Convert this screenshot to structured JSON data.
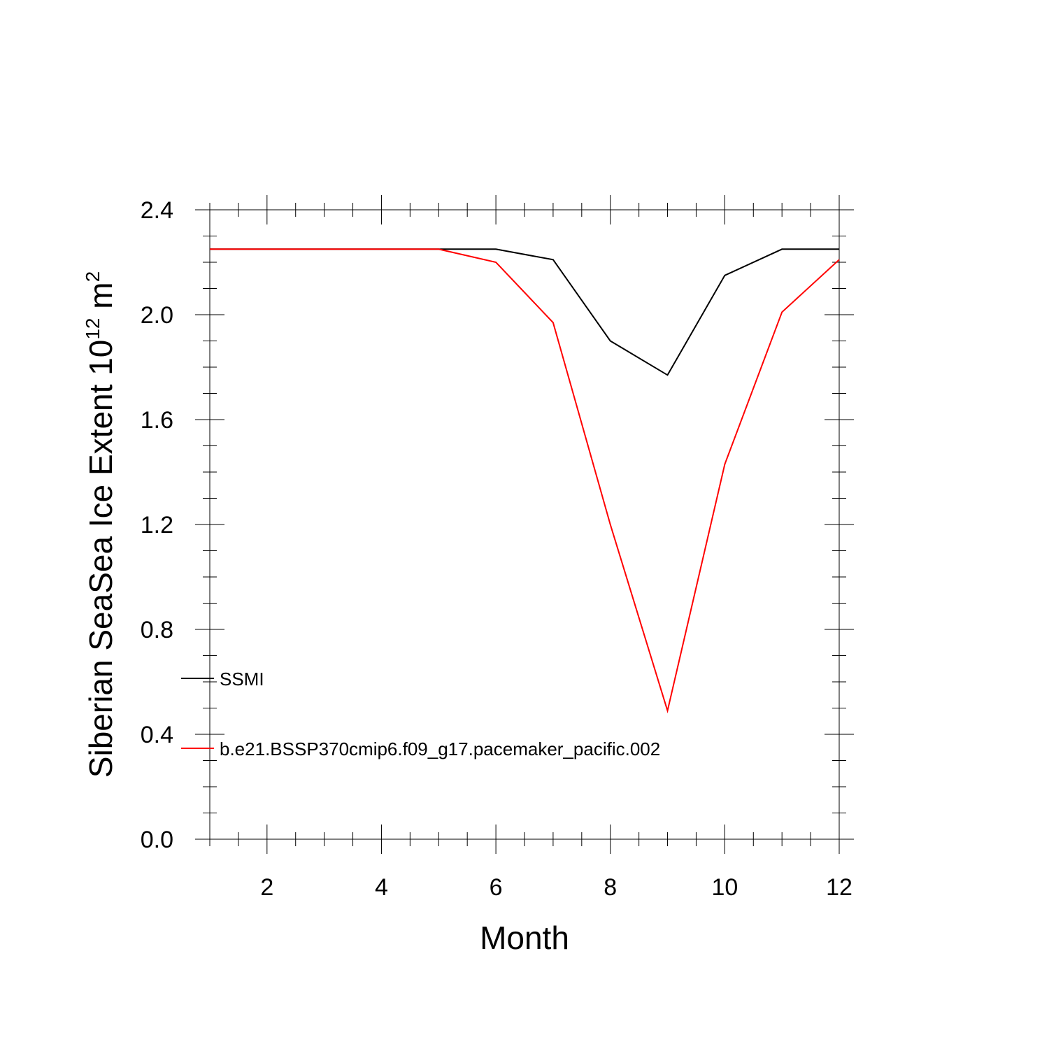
{
  "chart_data": {
    "type": "line",
    "xlabel": "Month",
    "ylabel": "Siberian SeaSea Ice Extent 10",
    "ylabel_exponent": "12",
    "ylabel_unit": " m",
    "ylabel_unit_exponent": "2",
    "xlim": [
      1,
      12
    ],
    "ylim": [
      0,
      2.4
    ],
    "xticks": [
      2,
      4,
      6,
      8,
      10,
      12
    ],
    "xtick_labels": [
      "2",
      "4",
      "6",
      "8",
      "10",
      "12"
    ],
    "yticks": [
      0,
      0.4,
      0.8,
      1.2,
      1.6,
      2.0,
      2.4
    ],
    "ytick_labels": [
      "0.0",
      "0.4",
      "0.8",
      "1.2",
      "1.6",
      "2.0",
      "2.4"
    ],
    "x": [
      1,
      2,
      3,
      4,
      5,
      6,
      7,
      8,
      9,
      10,
      11,
      12
    ],
    "series": [
      {
        "name": "SSMI",
        "color": "#000000",
        "values": [
          2.25,
          2.25,
          2.25,
          2.25,
          2.25,
          2.25,
          2.21,
          1.9,
          1.77,
          2.15,
          2.25,
          2.25
        ]
      },
      {
        "name": "b.e21.BSSP370cmip6.f09_g17.pacemaker_pacific.002",
        "color": "#ff0000",
        "values": [
          2.25,
          2.25,
          2.25,
          2.25,
          2.25,
          2.2,
          1.97,
          1.2,
          0.49,
          1.43,
          2.01,
          2.21
        ]
      }
    ],
    "legend_position": "lower-left",
    "grid": false
  }
}
